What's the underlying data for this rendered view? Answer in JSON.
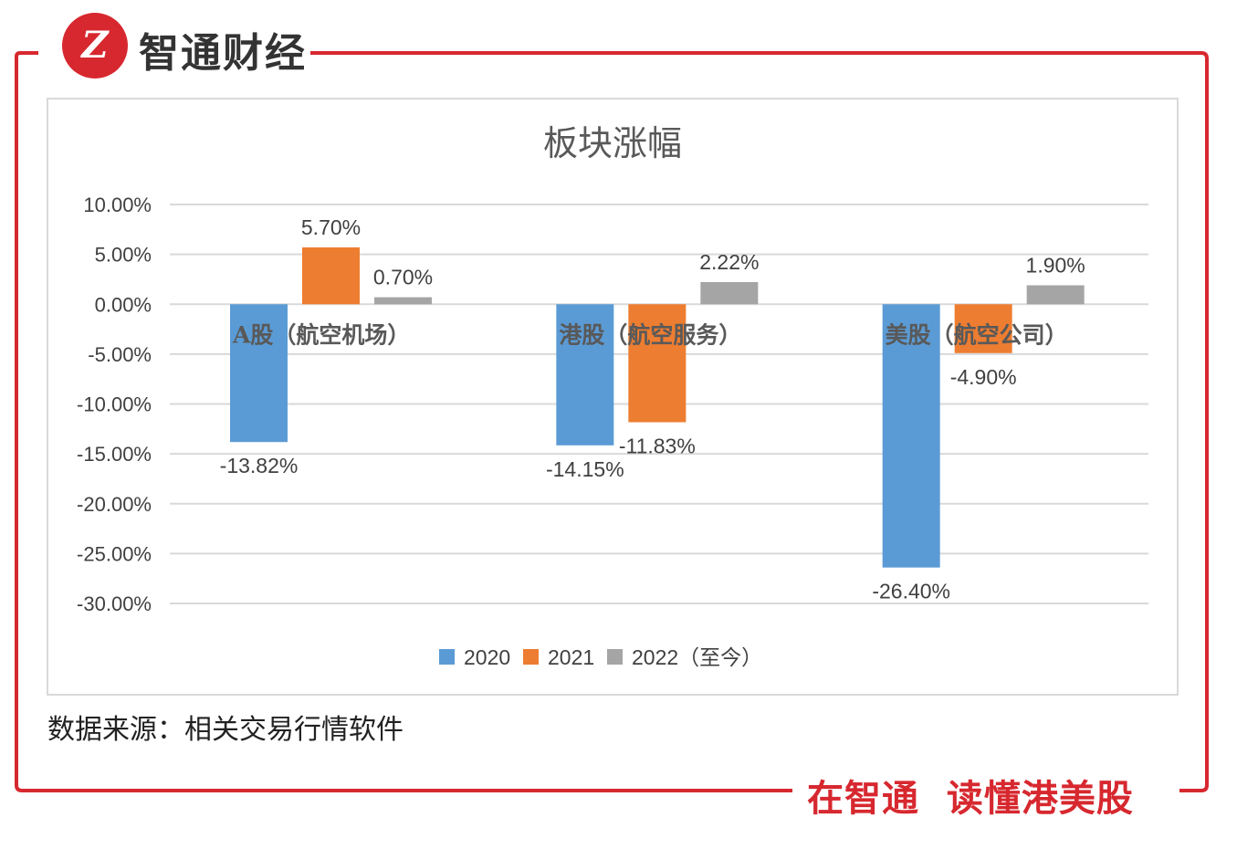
{
  "header": {
    "brand": "智通财经",
    "logo_mark": "Z"
  },
  "footer": {
    "source": "数据来源：相关交易行情软件",
    "slogan": "在智通  读懂港美股"
  },
  "colors": {
    "accent": "#d7282f",
    "s2020": "#5b9bd5",
    "s2021": "#ed7d31",
    "s2022": "#a5a5a5"
  },
  "chart_data": {
    "type": "bar",
    "title": "板块涨幅",
    "categories": [
      "A股（航空机场）",
      "港股（航空服务）",
      "美股（航空公司）"
    ],
    "series": [
      {
        "name": "2020",
        "values": [
          -13.82,
          -14.15,
          -26.4
        ],
        "labels": [
          "-13.82%",
          "-14.15%",
          "-26.40%"
        ]
      },
      {
        "name": "2021",
        "values": [
          5.7,
          -11.83,
          -4.9
        ],
        "labels": [
          "5.70%",
          "-11.83%",
          "-4.90%"
        ]
      },
      {
        "name": "2022（至今）",
        "values": [
          0.7,
          2.22,
          1.9
        ],
        "labels": [
          "0.70%",
          "2.22%",
          "1.90%"
        ]
      }
    ],
    "ylim": [
      -30,
      10
    ],
    "yticks": [
      10,
      5,
      0,
      -5,
      -10,
      -15,
      -20,
      -25,
      -30
    ],
    "ytick_labels": [
      "10.00%",
      "5.00%",
      "0.00%",
      "-5.00%",
      "-10.00%",
      "-15.00%",
      "-20.00%",
      "-25.00%",
      "-30.00%"
    ],
    "grid": true,
    "legend": "bottom"
  }
}
